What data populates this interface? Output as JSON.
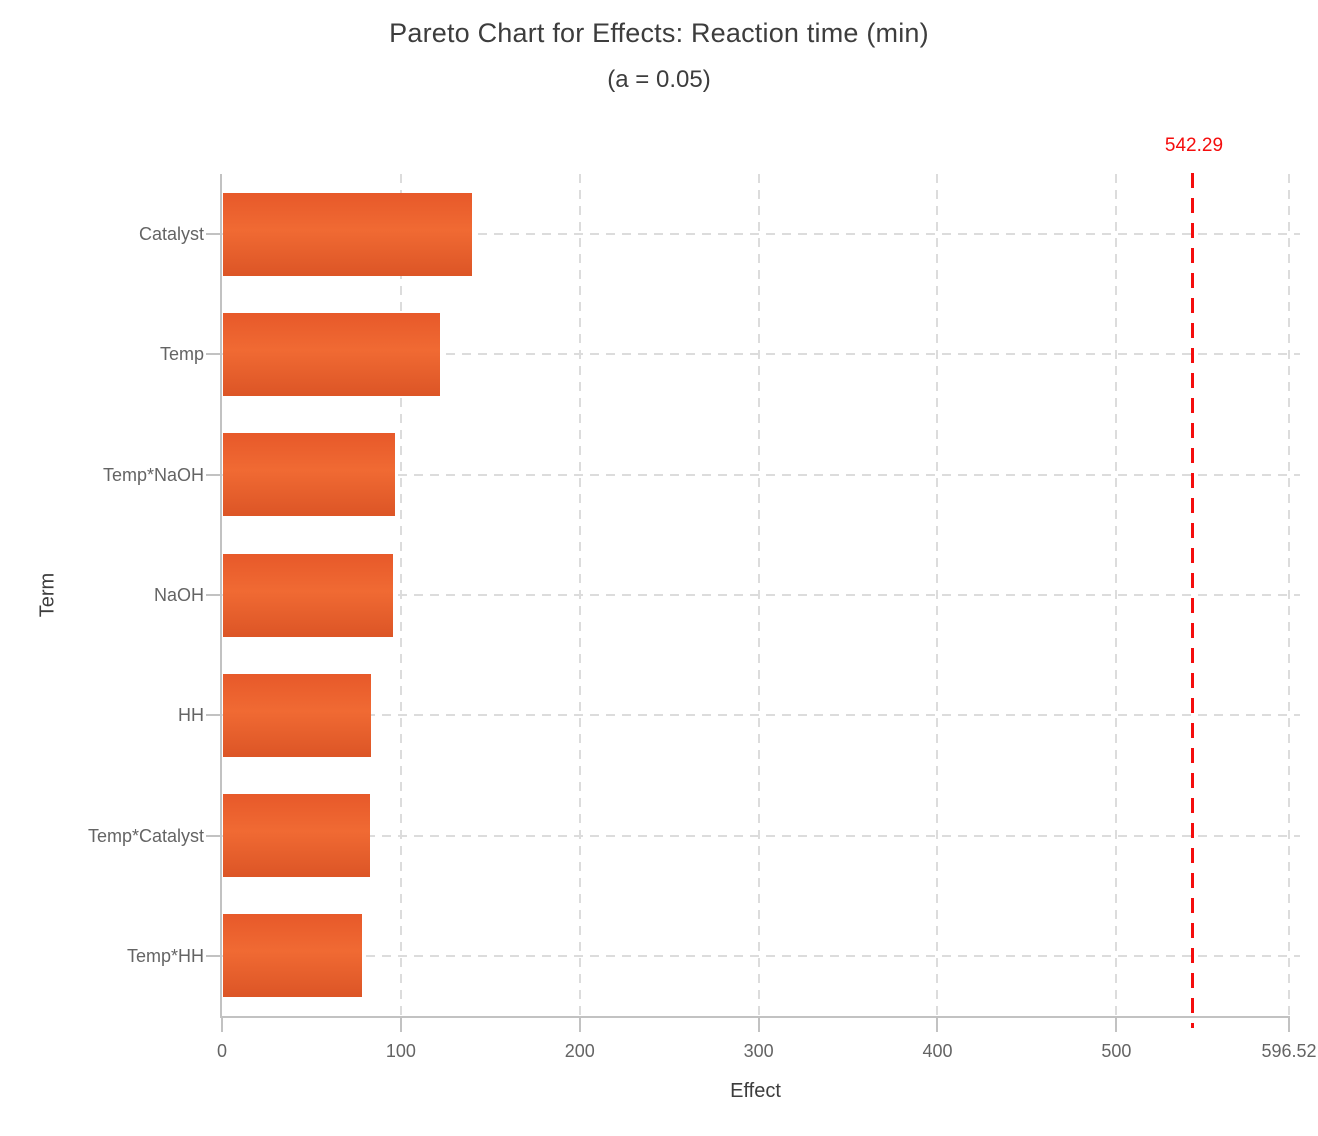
{
  "chart_data": {
    "type": "bar",
    "orientation": "horizontal",
    "title": "Pareto Chart for Effects: Reaction time (min)",
    "subtitle": "(a = 0.05)",
    "categories": [
      "Catalyst",
      "Temp",
      "Temp*NaOH",
      "NaOH",
      "HH",
      "Temp*Catalyst",
      "Temp*HH"
    ],
    "values": [
      139.7,
      122.0,
      96.8,
      95.7,
      83.5,
      82.8,
      78.5
    ],
    "xlabel": "Effect",
    "ylabel": "Term",
    "xlim": [
      0,
      596.52
    ],
    "xticks": {
      "values": [
        0,
        100,
        200,
        300,
        400,
        500,
        596.52
      ],
      "labels": [
        "0",
        "100",
        "200",
        "300",
        "400",
        "500",
        "596.52"
      ]
    },
    "reference_line": {
      "value": 542.29,
      "label": "542.29"
    },
    "grid": true,
    "legend": "none"
  },
  "colors": {
    "bar": "#ED6431",
    "bar_gradient_top": "#E7592A",
    "bar_gradient_mid": "#F06A33",
    "bar_gradient_bottom": "#DC5526",
    "reference": "#F40D0D",
    "grid": "#DCDCDC",
    "axis": "#C2C2C2",
    "title_text": "#3D3D3D",
    "tick_text": "#646464",
    "background": "#FFFFFF"
  }
}
